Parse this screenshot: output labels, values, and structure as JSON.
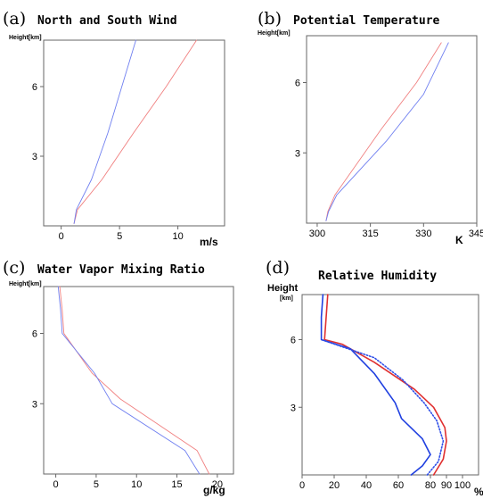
{
  "chart_data": [
    {
      "panel": "(a)",
      "type": "line",
      "title": "North and South Wind",
      "ylabel": "Height[km]",
      "xlabel": "m/s",
      "xlim": [
        -1.5,
        14
      ],
      "ylim": [
        0,
        8
      ],
      "xticks": [
        0,
        5,
        10
      ],
      "yticks": [
        3,
        6
      ],
      "series": [
        {
          "color": "#f08080",
          "style": "solid",
          "x": [
            1.1,
            1.4,
            3.5,
            6.2,
            9.0,
            11.6
          ],
          "y": [
            0.1,
            0.7,
            2.0,
            4.0,
            6.0,
            8.0
          ]
        },
        {
          "color": "#6f7ff0",
          "style": "solid",
          "x": [
            1.1,
            1.3,
            2.6,
            4.0,
            5.2,
            6.4
          ],
          "y": [
            0.1,
            0.7,
            2.0,
            4.0,
            6.0,
            8.0
          ]
        }
      ]
    },
    {
      "panel": "(b)",
      "type": "line",
      "title": "Potential Temperature",
      "ylabel": "Height[km]",
      "xlabel": "K",
      "xlim": [
        297,
        345
      ],
      "ylim": [
        0,
        8
      ],
      "xticks": [
        300,
        315,
        330,
        345
      ],
      "yticks": [
        3,
        6
      ],
      "series": [
        {
          "color": "#f08080",
          "style": "solid",
          "x": [
            302.5,
            303.0,
            305.0,
            318.0,
            328.0,
            335.0
          ],
          "y": [
            0.1,
            0.5,
            1.2,
            4.0,
            6.0,
            7.7
          ]
        },
        {
          "color": "#6f7ff0",
          "style": "solid",
          "x": [
            302.5,
            303.2,
            305.5,
            319.5,
            330.0,
            337.0
          ],
          "y": [
            0.1,
            0.5,
            1.2,
            3.5,
            5.5,
            7.7
          ]
        }
      ]
    },
    {
      "panel": "(c)",
      "type": "line",
      "title": "Water Vapor Mixing Ratio",
      "ylabel": "Height[km]",
      "xlabel": "g/kg",
      "xlim": [
        -1.5,
        22
      ],
      "ylim": [
        0,
        8
      ],
      "xticks": [
        0,
        5,
        10,
        15,
        20
      ],
      "yticks": [
        3,
        6
      ],
      "series": [
        {
          "color": "#f08080",
          "style": "solid",
          "x": [
            0.5,
            0.8,
            1.0,
            4.5,
            8.0,
            17.5,
            19.0
          ],
          "y": [
            8.0,
            7.0,
            6.0,
            4.3,
            3.2,
            1.0,
            0.0
          ]
        },
        {
          "color": "#6f7ff0",
          "style": "solid",
          "x": [
            0.3,
            0.6,
            0.8,
            4.8,
            7.0,
            16.0,
            17.8
          ],
          "y": [
            8.0,
            7.0,
            6.0,
            4.3,
            3.0,
            1.0,
            0.0
          ]
        }
      ]
    },
    {
      "panel": "(d)",
      "type": "line",
      "title": "Relative Humidity",
      "ylabel": "Height [km]",
      "xlabel": "%",
      "xlim": [
        0,
        110
      ],
      "ylim": [
        0,
        8
      ],
      "xticks": [
        0,
        20,
        40,
        60,
        80,
        90,
        100
      ],
      "yticks": [
        3,
        6
      ],
      "series": [
        {
          "color": "#e03030",
          "style": "solid",
          "x": [
            82,
            88,
            90,
            89,
            82,
            70,
            45,
            25,
            14,
            15,
            16
          ],
          "y": [
            0.0,
            0.7,
            1.5,
            2.1,
            3.0,
            3.8,
            5.0,
            5.8,
            6.0,
            7.0,
            8.0
          ]
        },
        {
          "color": "#2040e0",
          "style": "solid",
          "x": [
            68,
            75,
            80,
            75,
            62,
            58,
            45,
            30,
            12,
            12,
            13
          ],
          "y": [
            0.0,
            0.4,
            0.9,
            1.6,
            2.5,
            3.2,
            4.5,
            5.6,
            6.0,
            7.0,
            8.0
          ]
        },
        {
          "color": "#3050e8",
          "style": "dotted",
          "x": [
            78,
            85,
            88,
            84,
            76,
            63,
            45,
            12
          ],
          "y": [
            0.0,
            0.6,
            1.5,
            2.4,
            3.2,
            4.2,
            5.2,
            6.0
          ]
        }
      ]
    }
  ]
}
